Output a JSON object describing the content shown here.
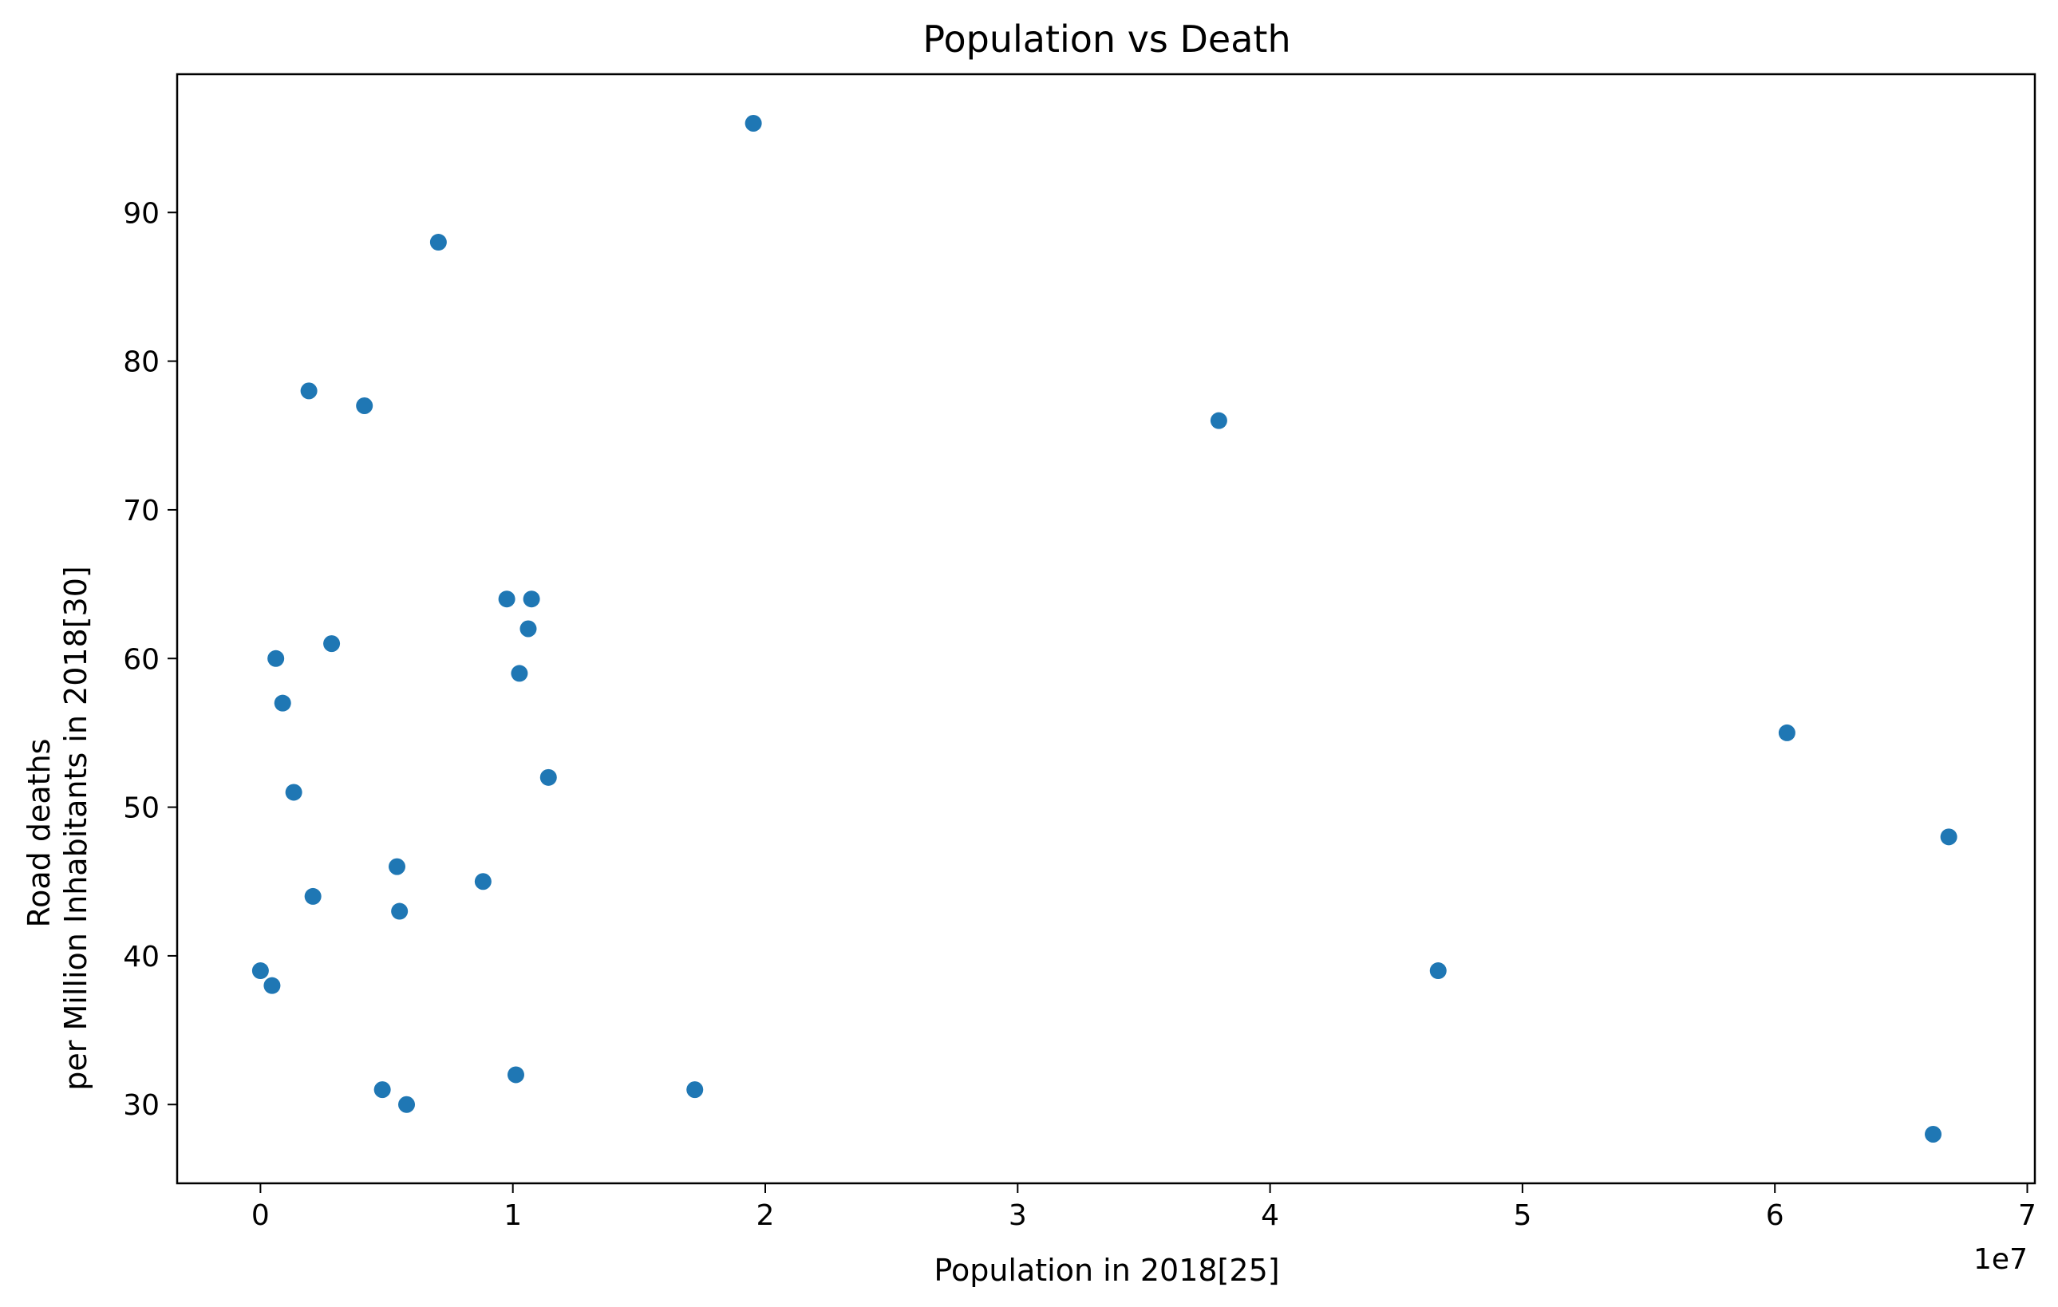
{
  "chart_data": {
    "type": "scatter",
    "title": "Population vs Death",
    "xlabel": "Population in 2018[25]",
    "ylabel_lines": [
      "Road deaths",
      "per Million Inhabitants in 2018[30]"
    ],
    "x_offset_label": "1e7",
    "x_ticks": [
      0,
      1,
      2,
      3,
      4,
      5,
      6,
      7
    ],
    "y_ticks": [
      30,
      40,
      50,
      60,
      70,
      80,
      90
    ],
    "xlim": [
      -0.33,
      7.03
    ],
    "ylim": [
      24.7,
      99.3
    ],
    "grid": false,
    "legend": "none",
    "marker_color": "#1f77b4",
    "x_units_scale": 10000000,
    "points": [
      {
        "x": 0.0,
        "y": 39
      },
      {
        "x": 0.046,
        "y": 38
      },
      {
        "x": 0.061,
        "y": 60
      },
      {
        "x": 0.088,
        "y": 57
      },
      {
        "x": 0.132,
        "y": 51
      },
      {
        "x": 0.192,
        "y": 78
      },
      {
        "x": 0.208,
        "y": 44
      },
      {
        "x": 0.282,
        "y": 61
      },
      {
        "x": 0.412,
        "y": 77
      },
      {
        "x": 0.483,
        "y": 31
      },
      {
        "x": 0.541,
        "y": 46
      },
      {
        "x": 0.551,
        "y": 43
      },
      {
        "x": 0.579,
        "y": 30
      },
      {
        "x": 0.705,
        "y": 88
      },
      {
        "x": 0.882,
        "y": 45
      },
      {
        "x": 0.976,
        "y": 64
      },
      {
        "x": 1.012,
        "y": 32
      },
      {
        "x": 1.026,
        "y": 59
      },
      {
        "x": 1.061,
        "y": 62
      },
      {
        "x": 1.074,
        "y": 64
      },
      {
        "x": 1.141,
        "y": 52
      },
      {
        "x": 1.721,
        "y": 31
      },
      {
        "x": 1.953,
        "y": 96
      },
      {
        "x": 3.797,
        "y": 76
      },
      {
        "x": 4.666,
        "y": 39
      },
      {
        "x": 6.048,
        "y": 55
      },
      {
        "x": 6.627,
        "y": 28
      },
      {
        "x": 6.689,
        "y": 48
      }
    ]
  }
}
